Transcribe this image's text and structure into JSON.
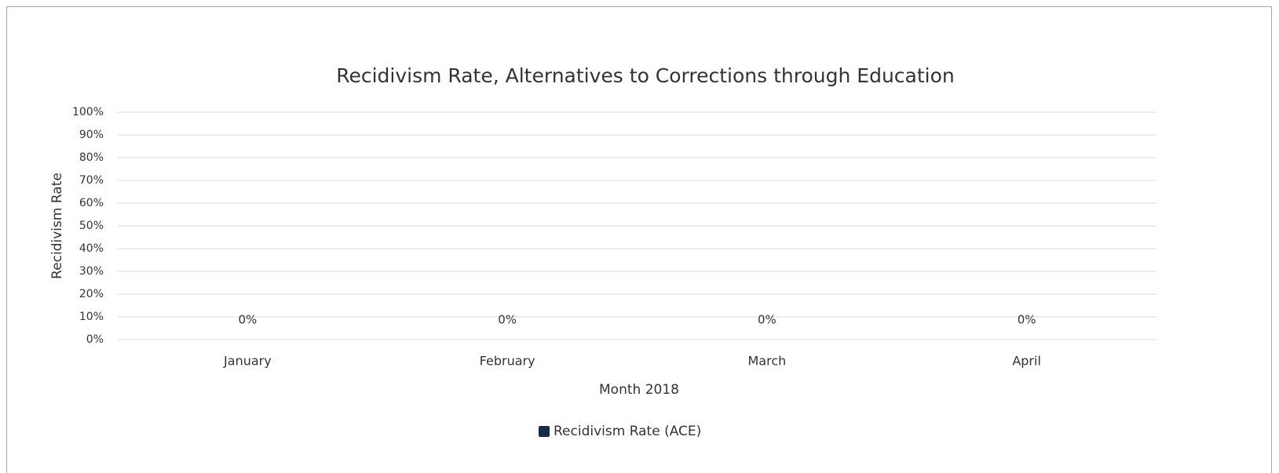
{
  "chart_data": {
    "type": "bar",
    "title": "Recidivism Rate, Alternatives to Corrections through Education",
    "x_label": "Month 2018",
    "y_label": "Recidivism Rate",
    "categories": [
      "January",
      "February",
      "March",
      "April"
    ],
    "series": [
      {
        "name": "Recidivism Rate (ACE)",
        "color": "#142a4c",
        "values": [
          0,
          0,
          0,
          0
        ],
        "value_labels": [
          "0%",
          "0%",
          "0%",
          "0%"
        ]
      }
    ],
    "ylim": [
      0,
      100
    ],
    "yticks": [
      {
        "value": 0,
        "label": "0%"
      },
      {
        "value": 10,
        "label": "10%"
      },
      {
        "value": 20,
        "label": "20%"
      },
      {
        "value": 30,
        "label": "30%"
      },
      {
        "value": 40,
        "label": "40%"
      },
      {
        "value": 50,
        "label": "50%"
      },
      {
        "value": 60,
        "label": "60%"
      },
      {
        "value": 70,
        "label": "70%"
      },
      {
        "value": 80,
        "label": "80%"
      },
      {
        "value": 90,
        "label": "90%"
      },
      {
        "value": 100,
        "label": "100%"
      }
    ],
    "grid": true,
    "legend": "bottom"
  }
}
